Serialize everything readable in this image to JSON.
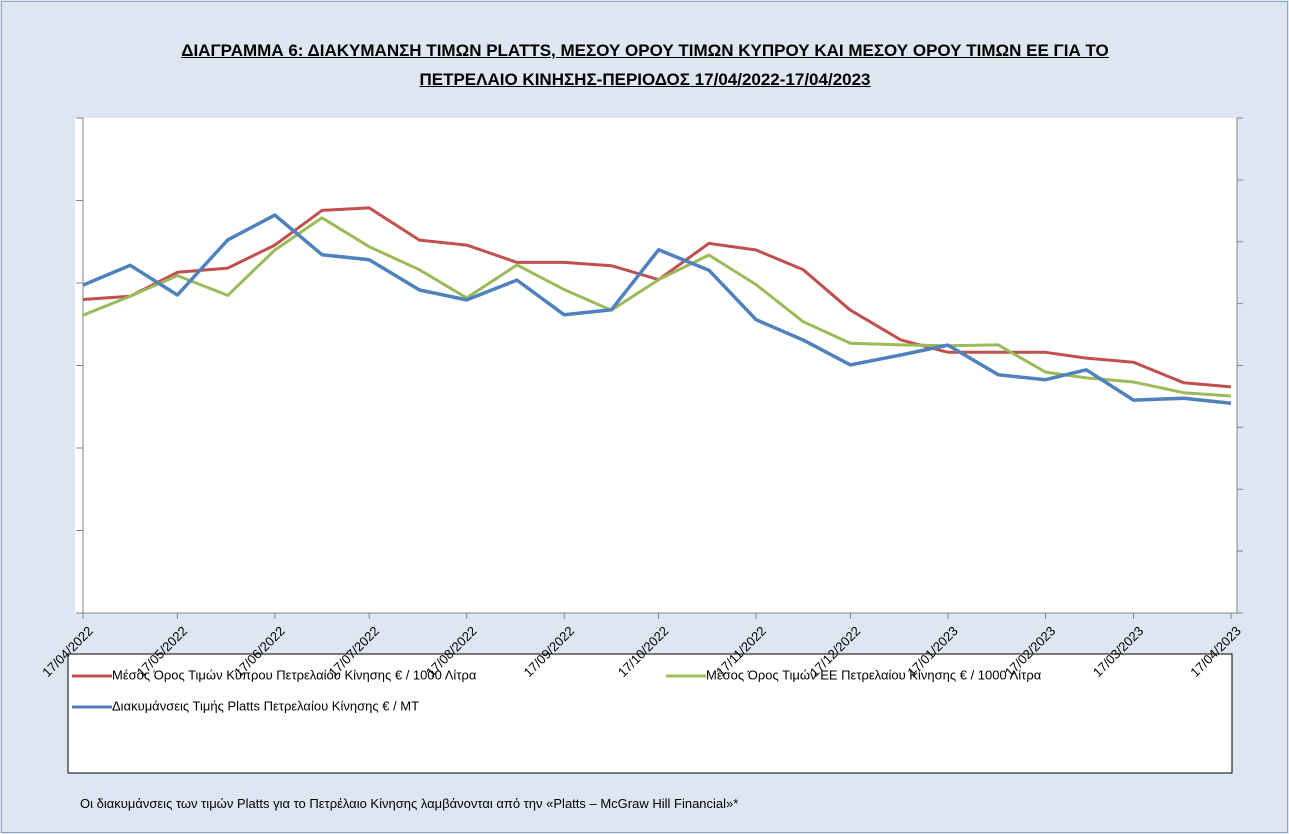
{
  "chart_data": {
    "type": "line",
    "title": "ΔΙΑΓΡΑΜΜΑ 6: ΔΙΑΚΥΜΑΝΣΗ ΤΙΜΩΝ PLATTS, ΜΕΣΟΥ ΟΡΟΥ ΤΙΜΩΝ ΚΥΠΡΟΥ ΚΑΙ ΜΕΣΟΥ ΟΡΟΥ ΤΙΜΩΝ ΕΕ ΓΙΑ ΤΟ ΠΕΤΡΕΛΑΙΟ ΚΙΝΗΣΗΣ-ΠΕΡΙΟΔΟΣ 17/04/2022-17/04/2023",
    "note": "Οι διακυμάνσεις των τιμών Platts για το Πετρέλαιο Κίνησης λαμβάνονται από την «Platts – McGraw Hill Financial»*",
    "x": [
      "17/04/2022",
      "02/05/2022",
      "17/05/2022",
      "02/06/2022",
      "17/06/2022",
      "02/07/2022",
      "17/07/2022",
      "02/08/2022",
      "17/08/2022",
      "02/09/2022",
      "17/09/2022",
      "02/10/2022",
      "17/10/2022",
      "02/11/2022",
      "17/11/2022",
      "02/12/2022",
      "17/12/2022",
      "02/01/2023",
      "17/01/2023",
      "02/02/2023",
      "17/02/2023",
      "02/03/2023",
      "17/03/2023",
      "02/04/2023",
      "17/04/2023"
    ],
    "xlim": [
      "17/04/2022",
      "17/04/2023"
    ],
    "xticks": [
      "17/04/2022",
      "17/05/2022",
      "17/06/2022",
      "17/07/2022",
      "17/08/2022",
      "17/09/2022",
      "17/10/2022",
      "17/11/2022",
      "17/12/2022",
      "17/01/2023",
      "17/02/2023",
      "17/03/2023",
      "17/04/2023"
    ],
    "ylim": [
      0,
      6
    ],
    "yticks": [
      0,
      1,
      2,
      3,
      4,
      5,
      6
    ],
    "y2lim": [
      0,
      8
    ],
    "y2ticks": [
      0,
      1,
      2,
      3,
      4,
      5,
      6,
      7,
      8
    ],
    "series": [
      {
        "name": "Μέσος Όρος Τιμών Κύπρου Πετρελαίου Κίνησης  € / 1000 Λίτρα",
        "color": "#c0504d",
        "values": [
          3.8,
          3.84,
          4.13,
          4.18,
          4.46,
          4.88,
          4.91,
          4.52,
          4.46,
          4.25,
          4.25,
          4.21,
          4.04,
          4.48,
          4.4,
          4.16,
          3.67,
          3.31,
          3.16,
          3.16,
          3.16,
          3.09,
          3.04,
          2.79,
          2.74
        ]
      },
      {
        "name": "Μέσος Όρος Τιμών ΕΕ Πετρελαίου Κίνησης  € / 1000 Λίτρα",
        "color": "#9bbb59",
        "values": [
          3.61,
          3.84,
          4.09,
          3.85,
          4.4,
          4.79,
          4.44,
          4.16,
          3.82,
          4.22,
          3.92,
          3.67,
          4.04,
          4.34,
          3.98,
          3.53,
          3.27,
          3.25,
          3.24,
          3.25,
          2.92,
          2.85,
          2.8,
          2.67,
          2.63
        ]
      },
      {
        "name": "Διακυμάνσεις Τιμής Platts Πετρελαίου Κίνησης € / MT",
        "color": "#4f81bd",
        "axis": "y2",
        "values": [
          5.3,
          5.62,
          5.14,
          6.03,
          6.43,
          5.79,
          5.71,
          5.22,
          5.06,
          5.38,
          4.82,
          4.9,
          5.87,
          5.54,
          4.74,
          4.41,
          4.01,
          4.17,
          4.33,
          3.85,
          3.77,
          3.93,
          3.44,
          3.47,
          3.39
        ]
      }
    ]
  }
}
